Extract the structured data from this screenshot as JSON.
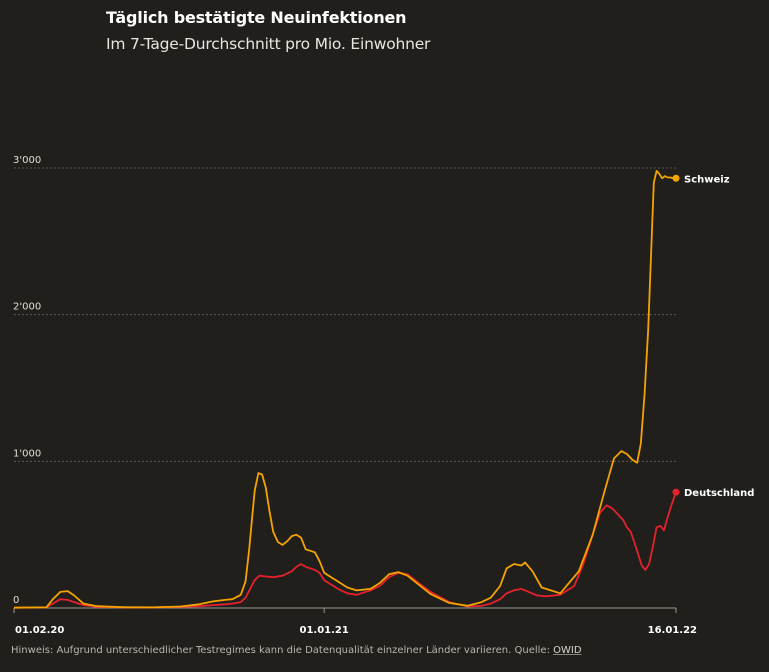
{
  "header": {
    "title": "Täglich bestätigte Neuinfektionen",
    "subtitle": "Im 7-Tage-Durchschnitt pro Mio. Einwohner"
  },
  "footer": {
    "note": "Hinweis: Aufgrund unterschiedlicher Testregimes kann die Datenqualität einzelner Länder variieren. Quelle:",
    "source_label": "OWID"
  },
  "colors": {
    "background": "#201f1c",
    "schweiz": "#f5a300",
    "deutschland": "#e3222e",
    "grid": "#66645e",
    "text": "#ffffff"
  },
  "chart_data": {
    "type": "line",
    "title": "Täglich bestätigte Neuinfektionen",
    "subtitle": "Im 7-Tage-Durchschnitt pro Mio. Einwohner",
    "x_unit": "days since 01.02.20",
    "xlim": [
      0,
      715
    ],
    "ylim": [
      0,
      3000
    ],
    "grid": true,
    "y_ticks": [
      {
        "value": 0,
        "label": "0"
      },
      {
        "value": 1000,
        "label": "1'000"
      },
      {
        "value": 2000,
        "label": "2'000"
      },
      {
        "value": 3000,
        "label": "3'000"
      }
    ],
    "x_ticks": [
      {
        "value": 0,
        "label": "01.02.20"
      },
      {
        "value": 335,
        "label": "01.01.21"
      },
      {
        "value": 715,
        "label": "16.01.22"
      }
    ],
    "series": [
      {
        "name": "Schweiz",
        "color": "#f5a300",
        "x": [
          0,
          35,
          42,
          50,
          58,
          65,
          75,
          90,
          120,
          150,
          180,
          200,
          215,
          228,
          236,
          245,
          250,
          254,
          257,
          260,
          264,
          268,
          272,
          276,
          280,
          285,
          290,
          295,
          300,
          305,
          310,
          315,
          320,
          325,
          330,
          335,
          340,
          350,
          360,
          370,
          385,
          395,
          405,
          415,
          425,
          435,
          450,
          470,
          490,
          505,
          515,
          525,
          532,
          540,
          548,
          552,
          560,
          570,
          590,
          610,
          625,
          638,
          648,
          656,
          662,
          668,
          673,
          677,
          681,
          685,
          688,
          691,
          694,
          697,
          700,
          703,
          706,
          709,
          712,
          715
        ],
        "values": [
          2,
          5,
          60,
          110,
          115,
          85,
          30,
          12,
          5,
          4,
          10,
          25,
          45,
          55,
          60,
          90,
          180,
          400,
          600,
          800,
          920,
          910,
          820,
          660,
          520,
          450,
          430,
          455,
          490,
          500,
          480,
          400,
          390,
          380,
          320,
          240,
          220,
          180,
          140,
          120,
          130,
          170,
          230,
          245,
          220,
          170,
          95,
          35,
          15,
          40,
          70,
          150,
          270,
          300,
          290,
          310,
          250,
          140,
          100,
          250,
          500,
          800,
          1020,
          1070,
          1050,
          1010,
          990,
          1120,
          1450,
          1900,
          2400,
          2900,
          2980,
          2960,
          2930,
          2945,
          2935,
          2935,
          2930,
          2930
        ]
      },
      {
        "name": "Deutschland",
        "color": "#e3222e",
        "x": [
          0,
          35,
          42,
          50,
          58,
          65,
          75,
          90,
          120,
          150,
          180,
          200,
          215,
          228,
          236,
          245,
          250,
          255,
          260,
          265,
          272,
          280,
          290,
          300,
          305,
          310,
          315,
          320,
          325,
          330,
          335,
          340,
          350,
          360,
          370,
          385,
          395,
          405,
          415,
          425,
          435,
          450,
          470,
          490,
          505,
          515,
          525,
          532,
          540,
          548,
          556,
          565,
          575,
          590,
          605,
          615,
          625,
          633,
          640,
          646,
          652,
          658,
          662,
          666,
          670,
          674,
          678,
          682,
          686,
          690,
          694,
          698,
          702,
          706,
          710,
          715
        ],
        "values": [
          2,
          5,
          30,
          60,
          55,
          40,
          20,
          8,
          5,
          5,
          8,
          12,
          20,
          25,
          30,
          40,
          70,
          130,
          190,
          220,
          215,
          210,
          220,
          250,
          280,
          300,
          280,
          270,
          260,
          240,
          190,
          170,
          130,
          100,
          90,
          120,
          150,
          210,
          240,
          230,
          180,
          110,
          40,
          10,
          15,
          30,
          60,
          100,
          120,
          130,
          110,
          85,
          80,
          90,
          150,
          300,
          500,
          650,
          700,
          680,
          640,
          600,
          550,
          520,
          450,
          370,
          290,
          260,
          300,
          420,
          550,
          560,
          530,
          620,
          700,
          790
        ]
      }
    ]
  }
}
